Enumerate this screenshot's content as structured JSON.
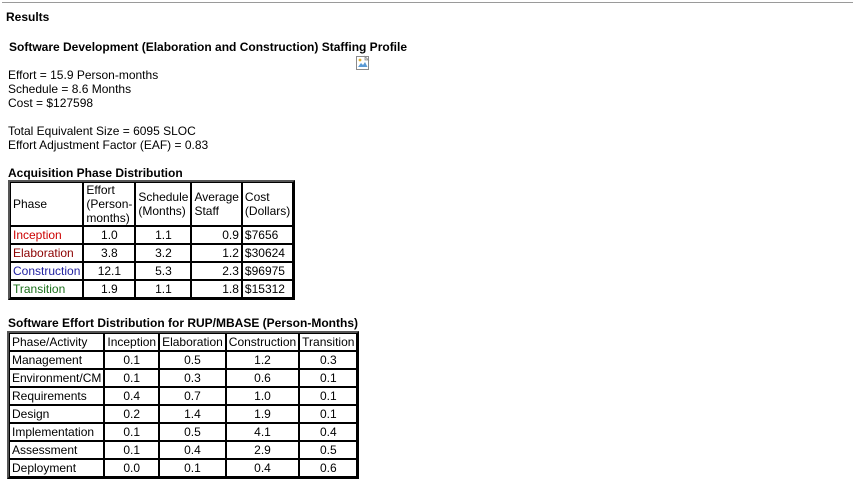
{
  "results_heading": "Results",
  "profile_title": "Software Development (Elaboration and Construction) Staffing Profile",
  "summary": {
    "effort": "Effort = 15.9 Person-months",
    "schedule": "Schedule = 8.6 Months",
    "cost": "Cost = $127598"
  },
  "size": {
    "total_size": "Total Equivalent Size = 6095 SLOC",
    "eaf": "Effort Adjustment Factor (EAF) = 0.83"
  },
  "acquisition": {
    "title": "Acquisition Phase Distribution",
    "headers": {
      "phase": "Phase",
      "effort": [
        "Effort",
        "(Person-",
        "months)"
      ],
      "schedule": [
        "Schedule",
        "(Months)"
      ],
      "staff": [
        "Average",
        "Staff"
      ],
      "cost": [
        "Cost",
        "(Dollars)"
      ]
    },
    "rows": [
      {
        "phase": "Inception",
        "color": "#cc0000",
        "effort": "1.0",
        "schedule": "1.1",
        "staff": "0.9",
        "cost": "$7656"
      },
      {
        "phase": "Elaboration",
        "color": "#8b0000",
        "effort": "3.8",
        "schedule": "3.2",
        "staff": "1.2",
        "cost": "$30624"
      },
      {
        "phase": "Construction",
        "color": "#1f1fa0",
        "effort": "12.1",
        "schedule": "5.3",
        "staff": "2.3",
        "cost": "$96975"
      },
      {
        "phase": "Transition",
        "color": "#1a6e1a",
        "effort": "1.9",
        "schedule": "1.1",
        "staff": "1.8",
        "cost": "$15312"
      }
    ]
  },
  "mbase": {
    "title": "Software Effort Distribution for RUP/MBASE (Person-Months)",
    "headers": [
      "Phase/Activity",
      "Inception",
      "Elaboration",
      "Construction",
      "Transition"
    ],
    "rows": [
      {
        "activity": "Management",
        "inception": "0.1",
        "elaboration": "0.5",
        "construction": "1.2",
        "transition": "0.3"
      },
      {
        "activity": "Environment/CM",
        "inception": "0.1",
        "elaboration": "0.3",
        "construction": "0.6",
        "transition": "0.1"
      },
      {
        "activity": "Requirements",
        "inception": "0.4",
        "elaboration": "0.7",
        "construction": "1.0",
        "transition": "0.1"
      },
      {
        "activity": "Design",
        "inception": "0.2",
        "elaboration": "1.4",
        "construction": "1.9",
        "transition": "0.1"
      },
      {
        "activity": "Implementation",
        "inception": "0.1",
        "elaboration": "0.5",
        "construction": "4.1",
        "transition": "0.4"
      },
      {
        "activity": "Assessment",
        "inception": "0.1",
        "elaboration": "0.4",
        "construction": "2.9",
        "transition": "0.5"
      },
      {
        "activity": "Deployment",
        "inception": "0.0",
        "elaboration": "0.1",
        "construction": "0.4",
        "transition": "0.6"
      }
    ]
  }
}
